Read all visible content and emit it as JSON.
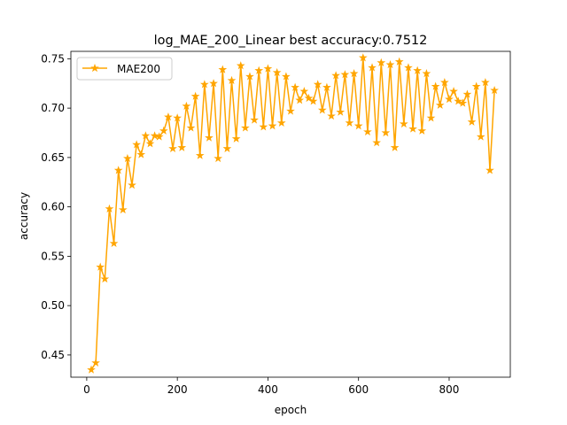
{
  "chart_data": {
    "type": "line",
    "title": "log_MAE_200_Linear best accuracy:0.7512",
    "xlabel": "epoch",
    "ylabel": "accuracy",
    "xlim": [
      -35,
      935
    ],
    "ylim": [
      0.4275,
      0.7575
    ],
    "x_ticks": [
      0,
      200,
      400,
      600,
      800
    ],
    "y_ticks": [
      0.45,
      0.5,
      0.55,
      0.6,
      0.65,
      0.7,
      0.75
    ],
    "y_tick_labels": [
      "0.45",
      "0.50",
      "0.55",
      "0.60",
      "0.65",
      "0.70",
      "0.75"
    ],
    "grid": false,
    "legend_position": "top-left",
    "series": [
      {
        "name": "MAE200",
        "color": "#ffa500",
        "marker": "star",
        "x": [
          10,
          20,
          30,
          40,
          50,
          60,
          70,
          80,
          90,
          100,
          110,
          120,
          130,
          140,
          150,
          160,
          170,
          180,
          190,
          200,
          210,
          220,
          230,
          240,
          250,
          260,
          270,
          280,
          290,
          300,
          310,
          320,
          330,
          340,
          350,
          360,
          370,
          380,
          390,
          400,
          410,
          420,
          430,
          440,
          450,
          460,
          470,
          480,
          490,
          500,
          510,
          520,
          530,
          540,
          550,
          560,
          570,
          580,
          590,
          600,
          610,
          620,
          630,
          640,
          650,
          660,
          670,
          680,
          690,
          700,
          710,
          720,
          730,
          740,
          750,
          760,
          770,
          780,
          790,
          800,
          810,
          820,
          830,
          840,
          850,
          860,
          870,
          880,
          890,
          900
        ],
        "y": [
          0.435,
          0.442,
          0.539,
          0.527,
          0.598,
          0.563,
          0.637,
          0.597,
          0.649,
          0.622,
          0.663,
          0.653,
          0.672,
          0.664,
          0.672,
          0.671,
          0.677,
          0.691,
          0.659,
          0.69,
          0.66,
          0.702,
          0.68,
          0.712,
          0.652,
          0.724,
          0.67,
          0.725,
          0.649,
          0.739,
          0.659,
          0.728,
          0.669,
          0.743,
          0.68,
          0.732,
          0.688,
          0.738,
          0.681,
          0.74,
          0.682,
          0.736,
          0.685,
          0.732,
          0.697,
          0.721,
          0.708,
          0.717,
          0.71,
          0.707,
          0.724,
          0.698,
          0.721,
          0.692,
          0.733,
          0.696,
          0.734,
          0.685,
          0.735,
          0.682,
          0.751,
          0.676,
          0.741,
          0.665,
          0.746,
          0.675,
          0.744,
          0.66,
          0.747,
          0.684,
          0.741,
          0.679,
          0.738,
          0.677,
          0.735,
          0.69,
          0.722,
          0.703,
          0.726,
          0.709,
          0.717,
          0.707,
          0.705,
          0.714,
          0.686,
          0.722,
          0.671,
          0.726,
          0.637,
          0.718
        ]
      }
    ]
  }
}
